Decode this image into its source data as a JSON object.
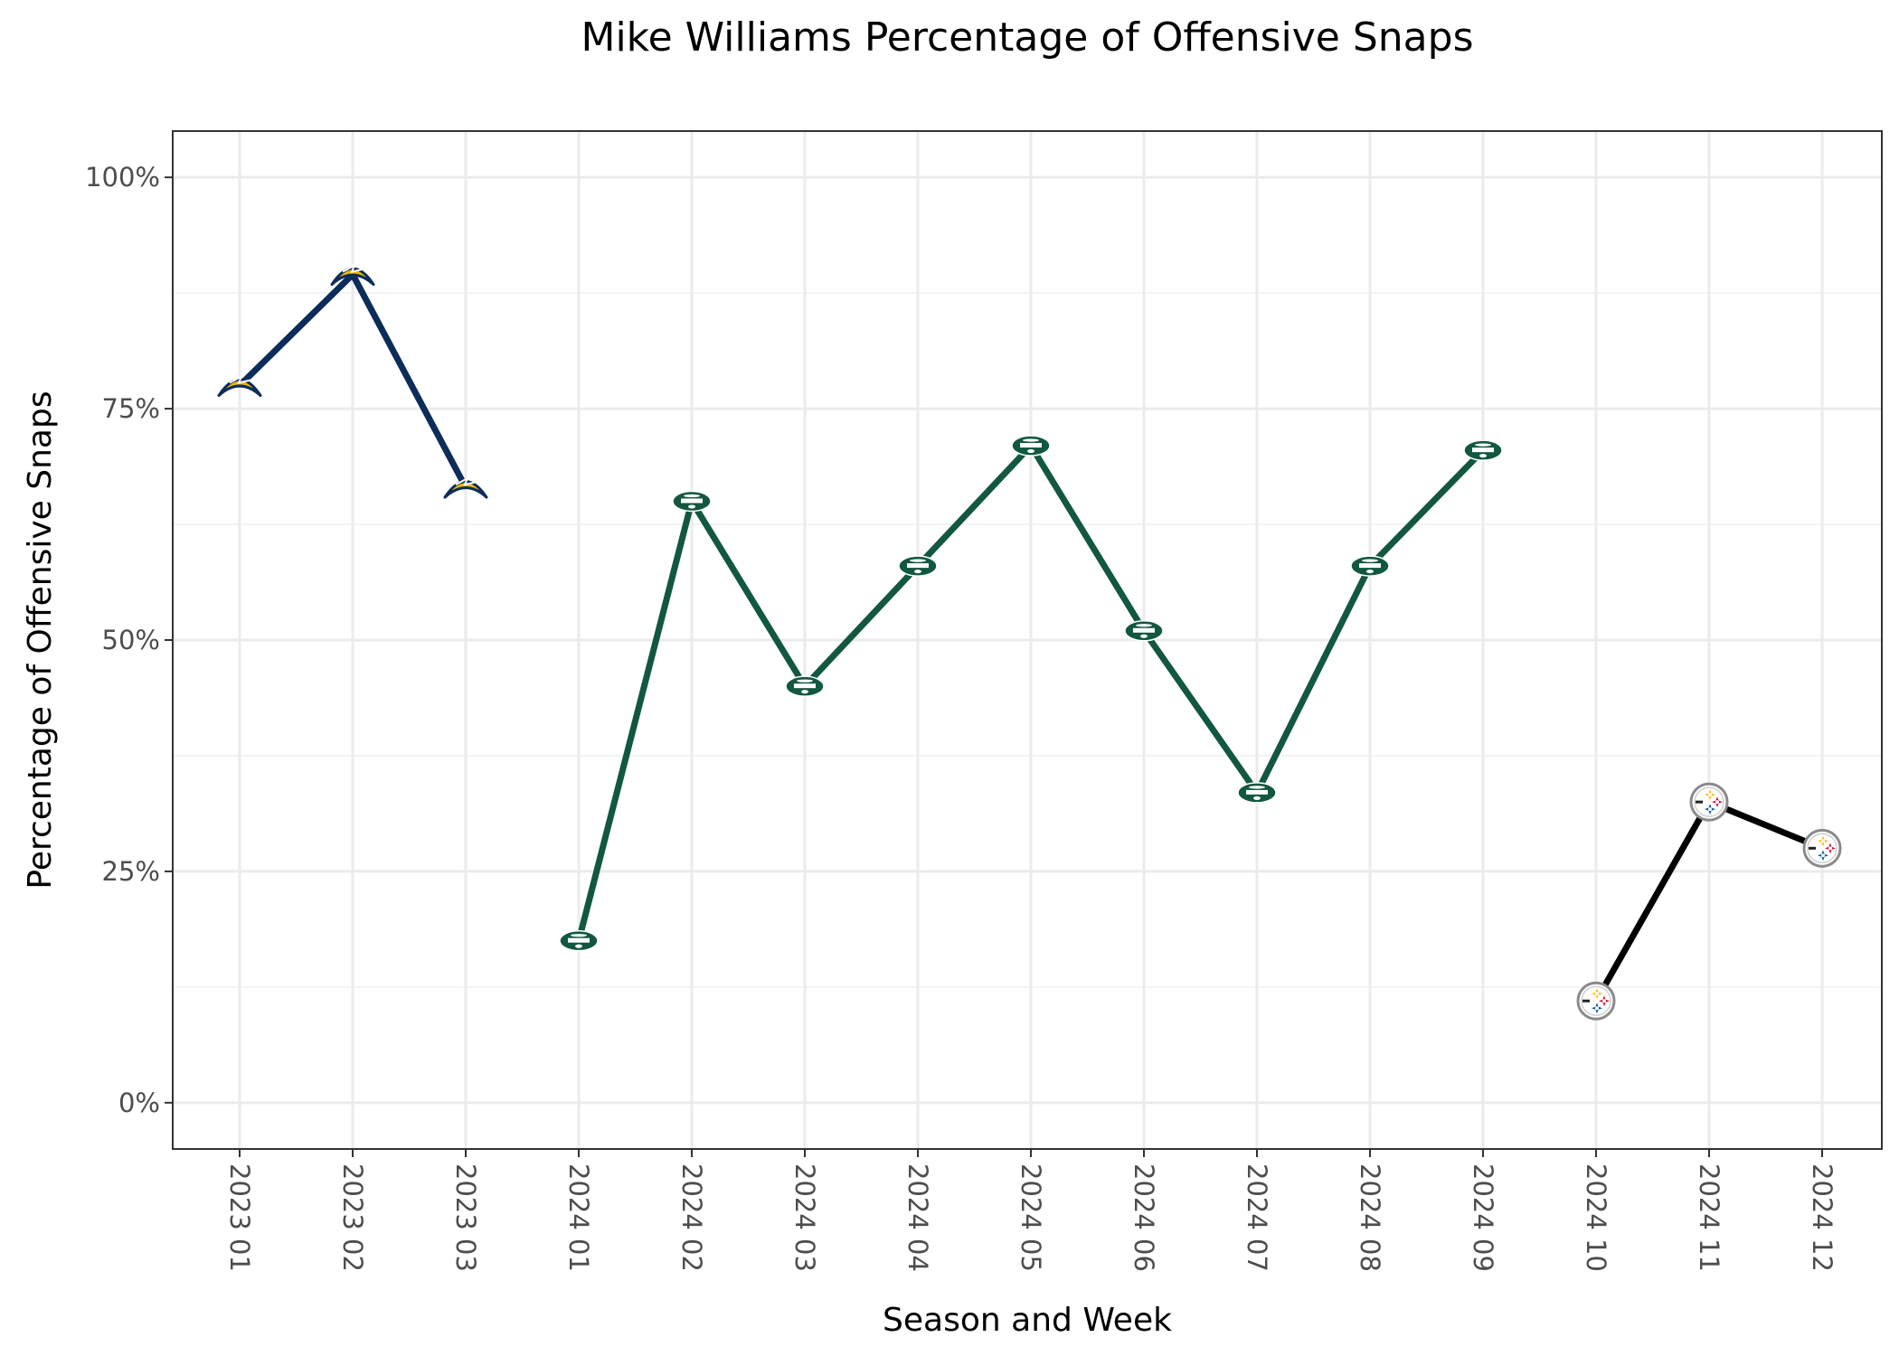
{
  "chart_data": {
    "type": "line",
    "title": "Mike Williams Percentage of Offensive Snaps",
    "xlabel": "Season and Week",
    "ylabel": "Percentage of Offensive Snaps",
    "categories": [
      "2023 01",
      "2023 02",
      "2023 03",
      "2024 01",
      "2024 02",
      "2024 03",
      "2024 04",
      "2024 05",
      "2024 06",
      "2024 07",
      "2024 08",
      "2024 09",
      "2024 10",
      "2024 11",
      "2024 12"
    ],
    "yticks": [
      0,
      25,
      50,
      75,
      100
    ],
    "ytick_labels": [
      "0%",
      "25%",
      "50%",
      "75%",
      "100%"
    ],
    "ylim": [
      -5,
      105
    ],
    "grid": true,
    "series": [
      {
        "team": "chargers",
        "color": "#0C2C5A",
        "marker_icon": "chargers-logo-icon",
        "points": [
          {
            "x": "2023 01",
            "y": 77.5
          },
          {
            "x": "2023 02",
            "y": 89.5
          },
          {
            "x": "2023 03",
            "y": 66.5
          }
        ]
      },
      {
        "team": "jets",
        "color": "#125740",
        "marker_icon": "jets-logo-icon",
        "points": [
          {
            "x": "2024 01",
            "y": 17.5
          },
          {
            "x": "2024 02",
            "y": 65.0
          },
          {
            "x": "2024 03",
            "y": 45.0
          },
          {
            "x": "2024 04",
            "y": 58.0
          },
          {
            "x": "2024 05",
            "y": 71.0
          },
          {
            "x": "2024 06",
            "y": 51.0
          },
          {
            "x": "2024 07",
            "y": 33.5
          },
          {
            "x": "2024 08",
            "y": 58.0
          },
          {
            "x": "2024 09",
            "y": 70.5
          }
        ]
      },
      {
        "team": "steelers",
        "color": "#000000",
        "marker_icon": "steelers-logo-icon",
        "points": [
          {
            "x": "2024 10",
            "y": 11.0
          },
          {
            "x": "2024 11",
            "y": 32.5
          },
          {
            "x": "2024 12",
            "y": 27.5
          }
        ]
      }
    ]
  }
}
